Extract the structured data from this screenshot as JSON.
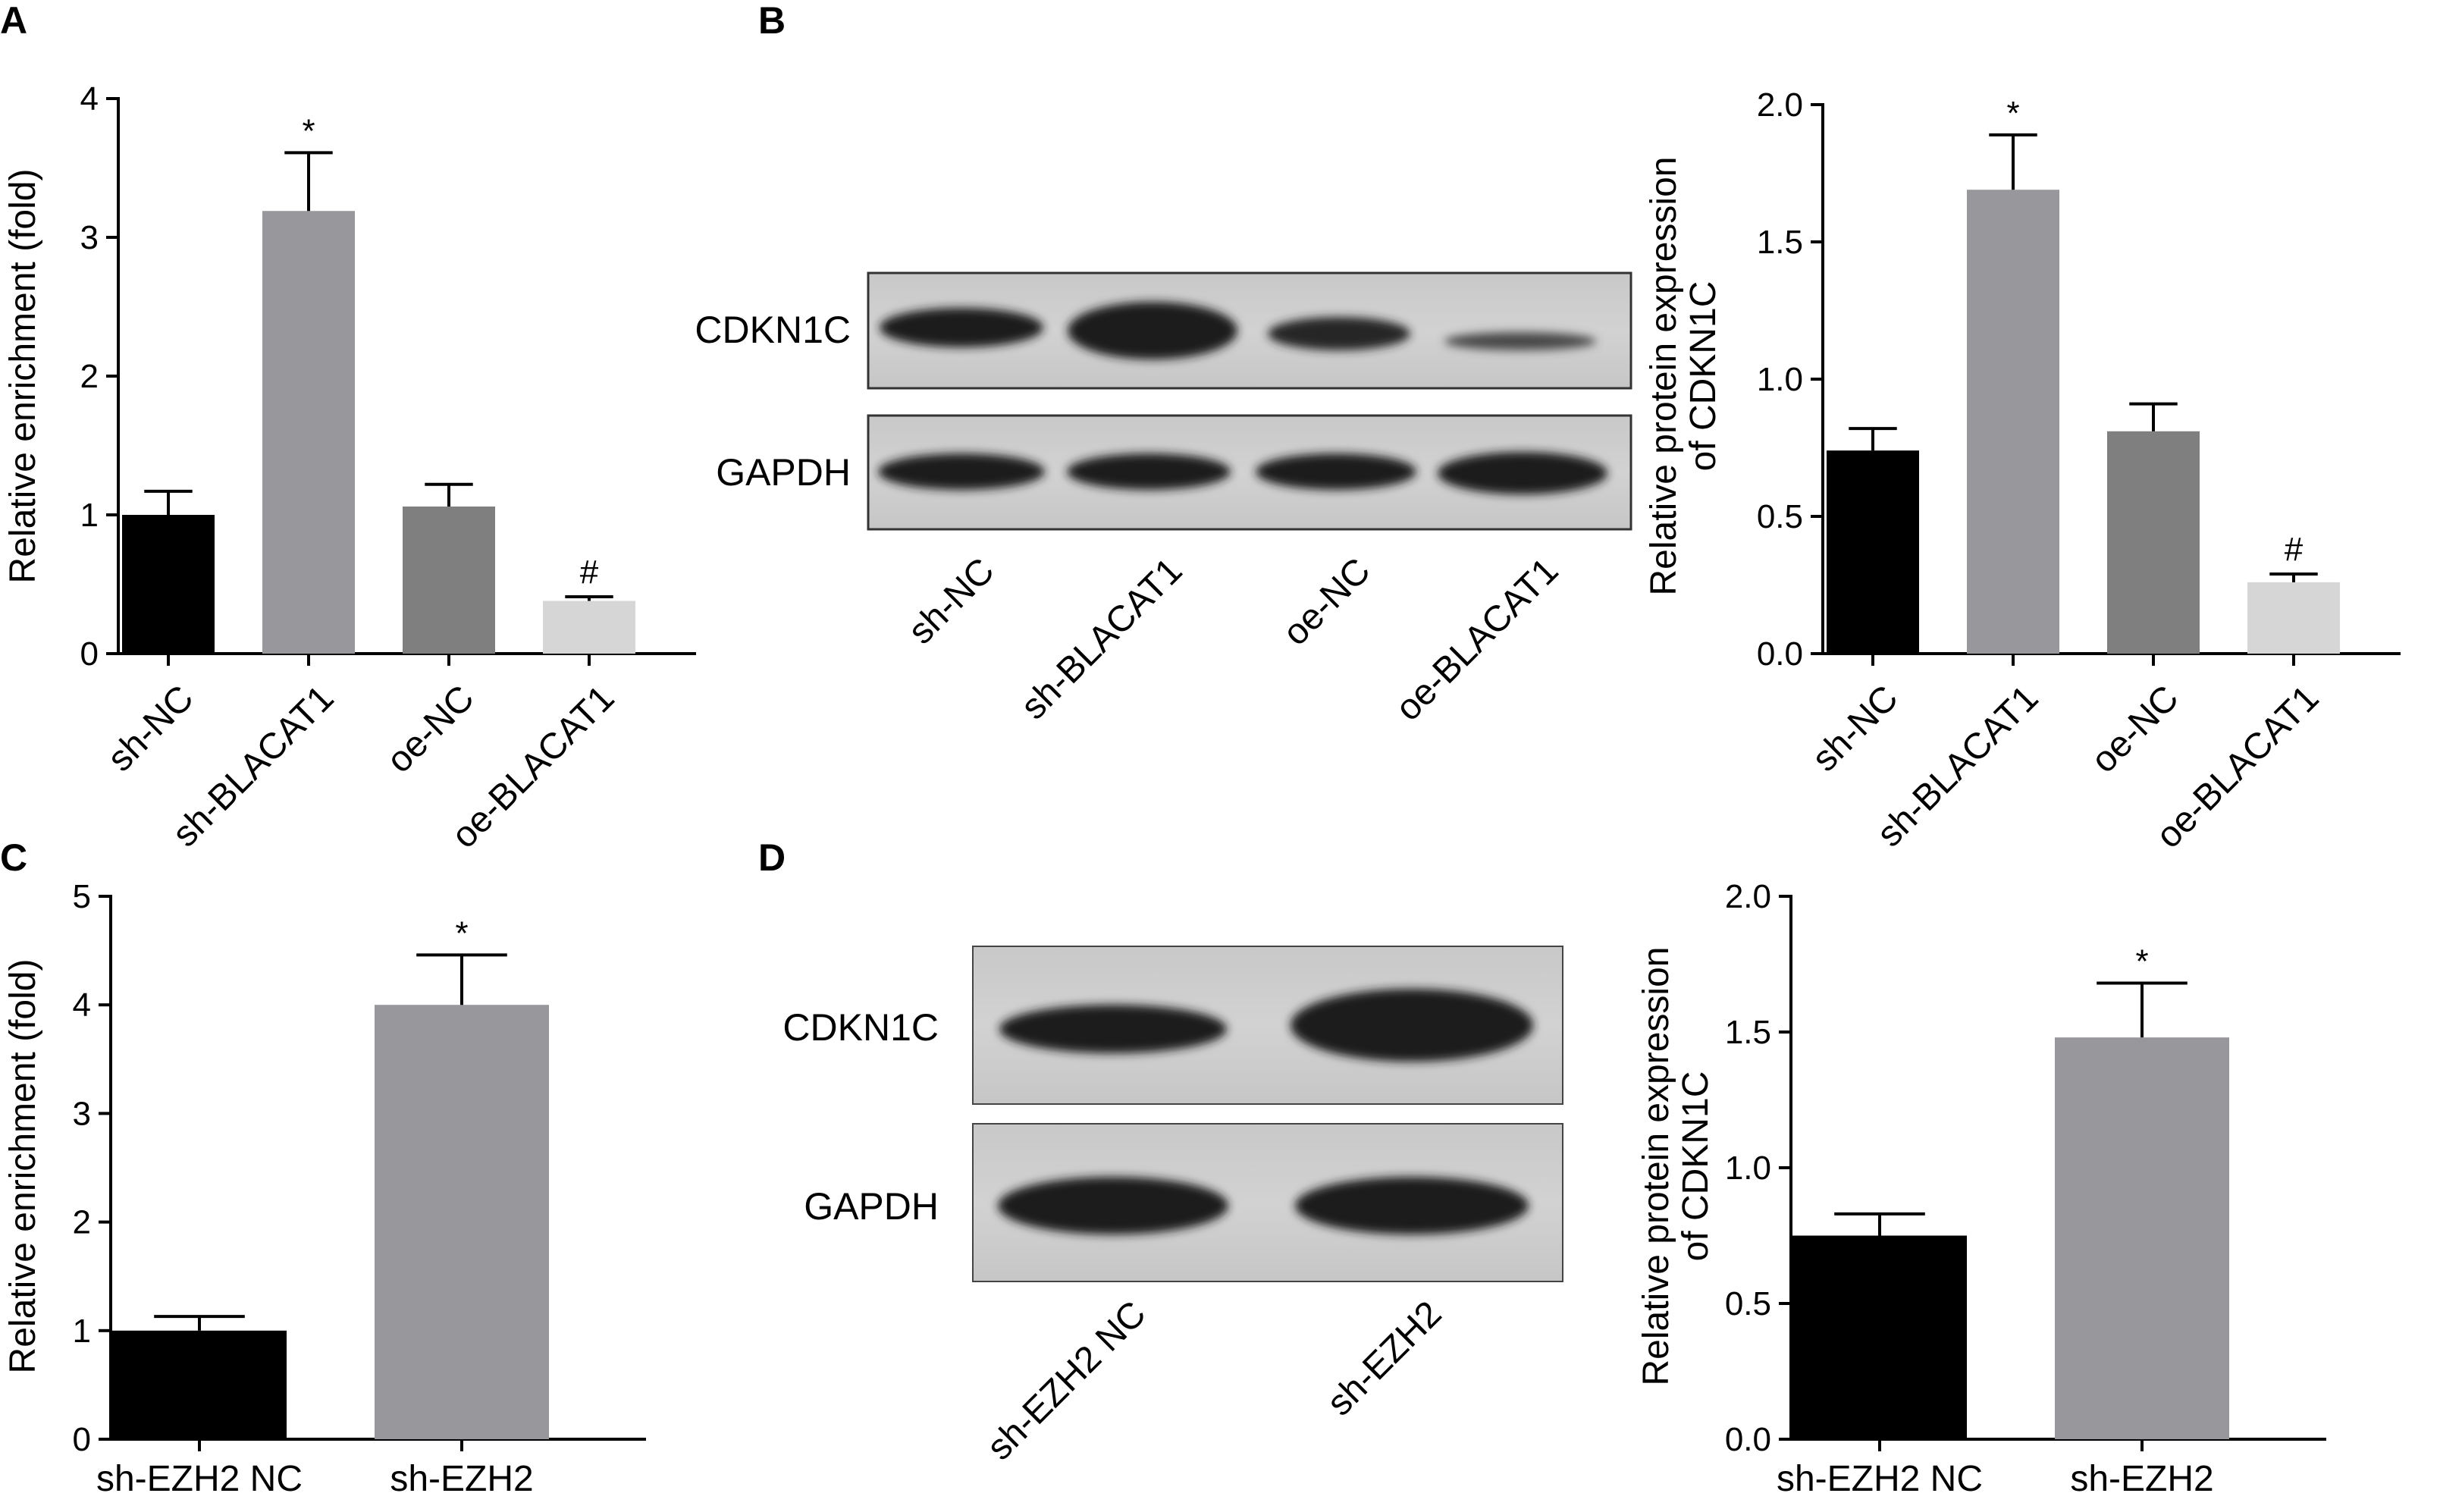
{
  "panels": {
    "A": {
      "label": "A"
    },
    "B": {
      "label": "B"
    },
    "C": {
      "label": "C"
    },
    "D": {
      "label": "D"
    }
  },
  "blots": {
    "B": {
      "rows": [
        "CDKN1C",
        "GAPDH"
      ],
      "lanes": [
        "sh-NC",
        "sh-BLACAT1",
        "oe-NC",
        "oe-BLACAT1"
      ]
    },
    "D": {
      "rows": [
        "CDKN1C",
        "GAPDH"
      ],
      "lanes": [
        "sh-EZH2 NC",
        "sh-EZH2"
      ]
    }
  },
  "chart_data": [
    {
      "id": "A",
      "type": "bar",
      "ylabel": "Relative enrichment (fold)",
      "ylim": [
        0,
        4
      ],
      "yticks": [
        "0",
        "1",
        "2",
        "3",
        "4"
      ],
      "categories": [
        "sh-NC",
        "sh-BLACAT1",
        "oe-NC",
        "oe-BLACAT1"
      ],
      "values": [
        1.0,
        3.19,
        1.06,
        0.38
      ],
      "errors": [
        0.17,
        0.42,
        0.16,
        0.03
      ],
      "annotations": [
        "",
        "*",
        "",
        "#"
      ],
      "colors": [
        "#000000",
        "#98989c",
        "#7f7f7f",
        "#d6d6d6"
      ]
    },
    {
      "id": "B",
      "type": "bar",
      "ylabel": [
        "Relative protein expression",
        "of CDKN1C"
      ],
      "ylim": [
        0,
        2.0
      ],
      "yticks": [
        "0.0",
        "0.5",
        "1.0",
        "1.5",
        "2.0"
      ],
      "categories": [
        "sh-NC",
        "sh-BLACAT1",
        "oe-NC",
        "oe-BLACAT1"
      ],
      "values": [
        0.74,
        1.69,
        0.81,
        0.26
      ],
      "errors": [
        0.08,
        0.2,
        0.1,
        0.03
      ],
      "annotations": [
        "",
        "*",
        "",
        "#"
      ],
      "colors": [
        "#000000",
        "#98989c",
        "#7f7f7f",
        "#d6d6d6"
      ]
    },
    {
      "id": "C",
      "type": "bar",
      "ylabel": "Relative enrichment (fold)",
      "ylim": [
        0,
        5
      ],
      "yticks": [
        "0",
        "1",
        "2",
        "3",
        "4",
        "5"
      ],
      "categories": [
        "sh-EZH2 NC",
        "sh-EZH2"
      ],
      "values": [
        1.0,
        4.0
      ],
      "errors": [
        0.13,
        0.46
      ],
      "annotations": [
        "",
        "*"
      ],
      "colors": [
        "#000000",
        "#98989c"
      ]
    },
    {
      "id": "D",
      "type": "bar",
      "ylabel": [
        "Relative protein expression",
        "of CDKN1C"
      ],
      "ylim": [
        0,
        2.0
      ],
      "yticks": [
        "0.0",
        "0.5",
        "1.0",
        "1.5",
        "2.0"
      ],
      "categories": [
        "sh-EZH2 NC",
        "sh-EZH2"
      ],
      "values": [
        0.75,
        1.48
      ],
      "errors": [
        0.08,
        0.2
      ],
      "annotations": [
        "",
        "*"
      ],
      "colors": [
        "#000000",
        "#98989c"
      ]
    }
  ]
}
